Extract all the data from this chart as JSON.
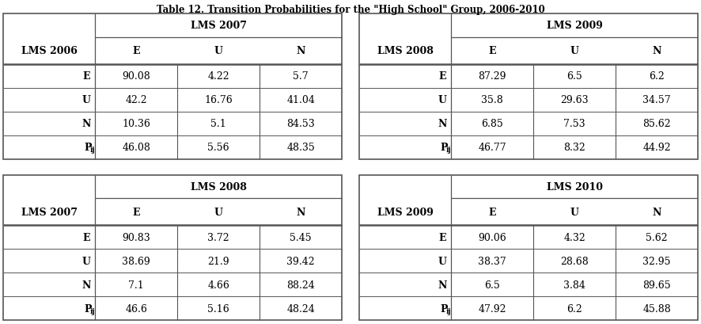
{
  "title": "Table 12. Transition Probabilities for the \"High School\" Group, 2006-2010",
  "tables": [
    {
      "col_header": "LMS 2007",
      "row_header": "LMS 2006",
      "cols": [
        "E",
        "U",
        "N"
      ],
      "rows": [
        "E",
        "U",
        "N",
        "P_ij"
      ],
      "data": [
        [
          "90.08",
          "4.22",
          "5.7"
        ],
        [
          "42.2",
          "16.76",
          "41.04"
        ],
        [
          "10.36",
          "5.1",
          "84.53"
        ],
        [
          "46.08",
          "5.56",
          "48.35"
        ]
      ]
    },
    {
      "col_header": "LMS 2009",
      "row_header": "LMS 2008",
      "cols": [
        "E",
        "U",
        "N"
      ],
      "rows": [
        "E",
        "U",
        "N",
        "P_ij"
      ],
      "data": [
        [
          "87.29",
          "6.5",
          "6.2"
        ],
        [
          "35.8",
          "29.63",
          "34.57"
        ],
        [
          "6.85",
          "7.53",
          "85.62"
        ],
        [
          "46.77",
          "8.32",
          "44.92"
        ]
      ]
    },
    {
      "col_header": "LMS 2008",
      "row_header": "LMS 2007",
      "cols": [
        "E",
        "U",
        "N"
      ],
      "rows": [
        "E",
        "U",
        "N",
        "P_ij"
      ],
      "data": [
        [
          "90.83",
          "3.72",
          "5.45"
        ],
        [
          "38.69",
          "21.9",
          "39.42"
        ],
        [
          "7.1",
          "4.66",
          "88.24"
        ],
        [
          "46.6",
          "5.16",
          "48.24"
        ]
      ]
    },
    {
      "col_header": "LMS 2010",
      "row_header": "LMS 2009",
      "cols": [
        "E",
        "U",
        "N"
      ],
      "rows": [
        "E",
        "U",
        "N",
        "P_ij"
      ],
      "data": [
        [
          "90.06",
          "4.32",
          "5.62"
        ],
        [
          "38.37",
          "28.68",
          "32.95"
        ],
        [
          "6.5",
          "3.84",
          "89.65"
        ],
        [
          "47.92",
          "6.2",
          "45.88"
        ]
      ]
    }
  ],
  "bg_color": "#ffffff",
  "border_color": "#555555",
  "text_color": "#000000",
  "title_fontsize": 8.5,
  "cell_fontsize": 9,
  "fig_width": 8.86,
  "fig_height": 4.1,
  "dpi": 100
}
